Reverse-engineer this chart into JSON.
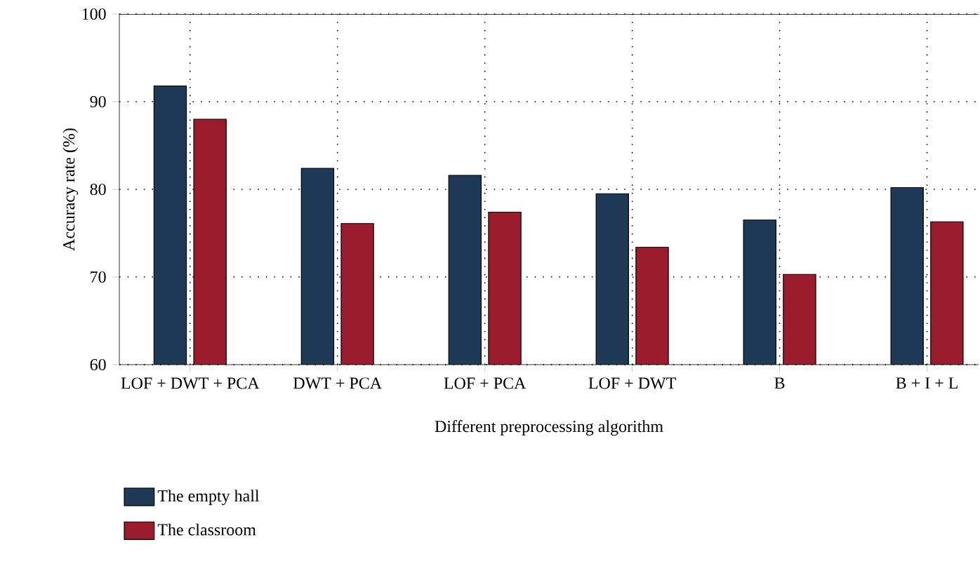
{
  "chart_data": {
    "type": "bar",
    "xlabel": "Different preprocessing algorithm",
    "ylabel": "Accuracy rate (%)",
    "categories": [
      "LOF + DWT + PCA",
      "DWT + PCA",
      "LOF + PCA",
      "LOF + DWT",
      "B",
      "B + I + L"
    ],
    "series": [
      {
        "name": "The empty hall",
        "color": "#1f3a56",
        "values": [
          91.8,
          82.4,
          81.6,
          79.5,
          76.5,
          80.2
        ]
      },
      {
        "name": "The classroom",
        "color": "#9b1c2c",
        "values": [
          88.0,
          76.1,
          77.4,
          73.4,
          70.3,
          76.3
        ]
      }
    ],
    "ylim": [
      60,
      100
    ],
    "yticks": [
      60,
      70,
      80,
      90,
      100
    ],
    "grid": true,
    "legend": "bottom left"
  }
}
